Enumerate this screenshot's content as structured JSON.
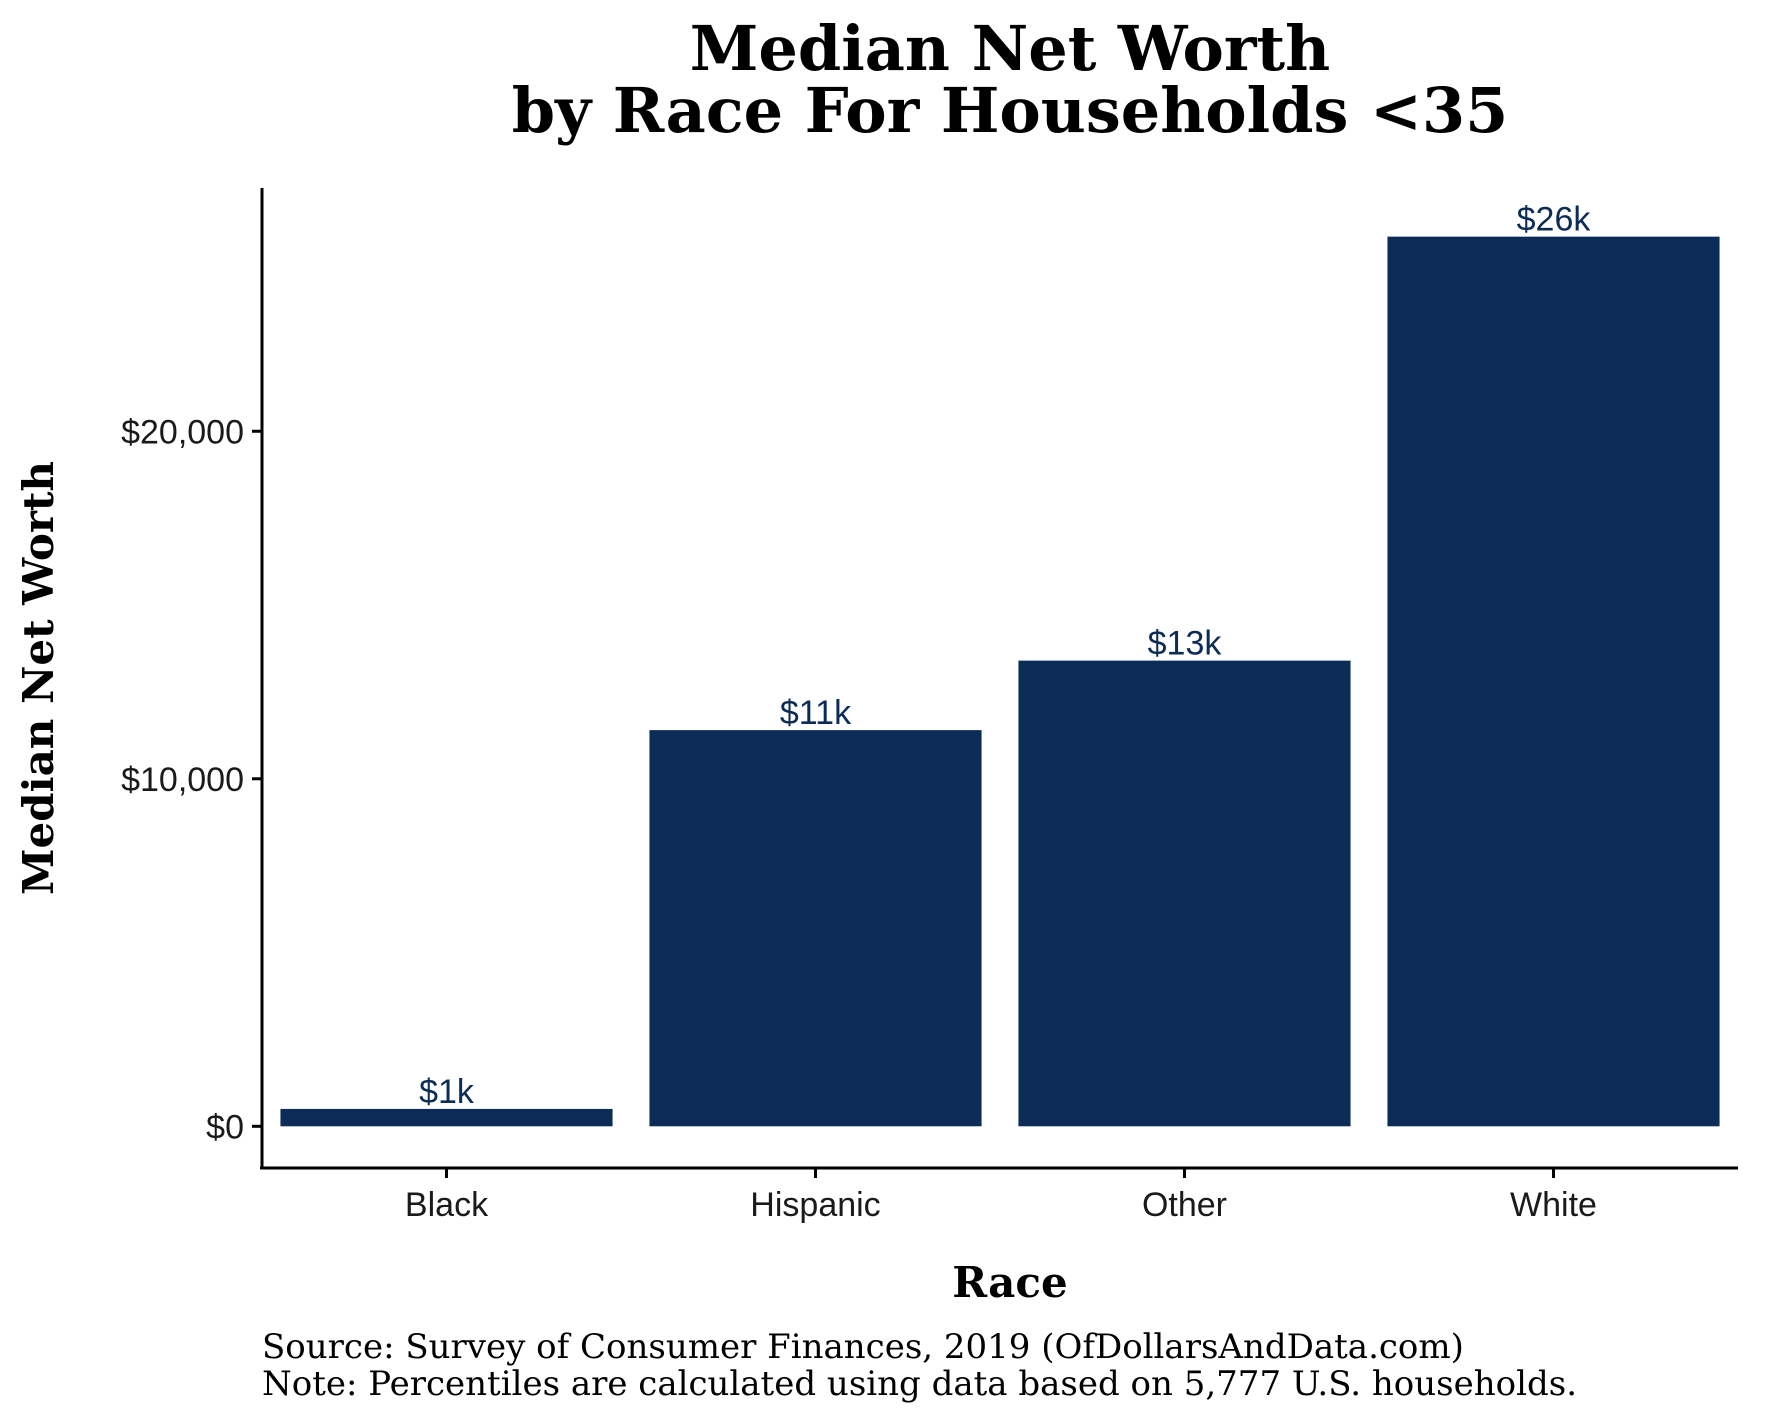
{
  "chart_data": {
    "type": "bar",
    "title": [
      "Median Net Worth",
      "by Race For Households <35"
    ],
    "xlabel": "Race",
    "ylabel": "Median Net Worth",
    "categories": [
      "Black",
      "Hispanic",
      "Other",
      "White"
    ],
    "values": [
      500,
      11400,
      13400,
      25600
    ],
    "data_labels": [
      "$1k",
      "$11k",
      "$13k",
      "$26k"
    ],
    "y_ticks": [
      0,
      10000,
      20000
    ],
    "y_tick_labels": [
      "$0",
      "$10,000",
      "$20,000"
    ],
    "ylim": [
      -1200,
      27000
    ],
    "grid": false,
    "legend": "none",
    "colors": {
      "bar": "#0b2c56",
      "data_label": "#0b2c56"
    }
  },
  "captions": {
    "source": "Source:  Survey of Consumer Finances, 2019 (OfDollarsAndData.com)",
    "note": "Note: Percentiles are calculated using data based on 5,777 U.S. households."
  }
}
